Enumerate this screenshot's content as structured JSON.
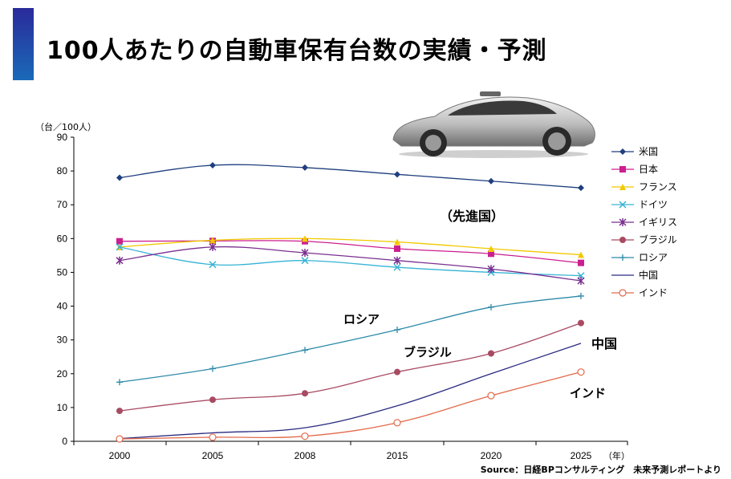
{
  "title": "100人あたりの自動車保有台数の実績・予測",
  "source": "Source：日経BPコンサルティング　未来予測レポートより",
  "chart_data": {
    "type": "line",
    "ylabel": "（台／100人）",
    "xlabel": "（年）",
    "categories": [
      "2000",
      "2005",
      "2008",
      "2015",
      "2020",
      "2025"
    ],
    "ylim": [
      0,
      90
    ],
    "yticks": [
      0,
      10,
      20,
      30,
      40,
      50,
      60,
      70,
      80,
      90
    ],
    "grid": false,
    "legend_position": "right",
    "series": [
      {
        "name": "米国",
        "color": "#1f3f7f",
        "marker": "diamond",
        "values": [
          78,
          81.7,
          81,
          79,
          77,
          75
        ]
      },
      {
        "name": "日本",
        "color": "#cc1f8f",
        "marker": "square",
        "values": [
          59.2,
          59.3,
          59.2,
          57,
          55.5,
          52.8
        ]
      },
      {
        "name": "フランス",
        "color": "#f2c800",
        "marker": "triangle",
        "values": [
          57.5,
          59.5,
          60,
          59,
          57,
          55.2
        ]
      },
      {
        "name": "ドイツ",
        "color": "#36b3d6",
        "marker": "x",
        "values": [
          57.5,
          52.3,
          53.5,
          51.5,
          50,
          49
        ]
      },
      {
        "name": "イギリス",
        "color": "#7a2f8f",
        "marker": "star",
        "values": [
          53.5,
          57.5,
          55.8,
          53.5,
          51,
          47.5
        ]
      },
      {
        "name": "ブラジル",
        "color": "#a84a62",
        "marker": "circle",
        "values": [
          9,
          12.3,
          14.2,
          20.5,
          26,
          35
        ]
      },
      {
        "name": "ロシア",
        "color": "#2c8aa8",
        "marker": "plus",
        "values": [
          17.5,
          21.5,
          27,
          33,
          39.7,
          43
        ]
      },
      {
        "name": "中国",
        "color": "#2a2a80",
        "marker": "none",
        "values": [
          0.8,
          2.5,
          4,
          10.5,
          20,
          29
        ]
      },
      {
        "name": "インド",
        "color": "#e26a4a",
        "marker": "open-circle",
        "values": [
          0.7,
          1.2,
          1.5,
          5.5,
          13.5,
          20.5
        ]
      }
    ],
    "annotations": [
      {
        "text": "（先進国）",
        "x": "2015",
        "y": 66
      },
      {
        "text": "ロシア",
        "x": "2008",
        "y": 36
      },
      {
        "text": "ブラジル",
        "x": "2015",
        "y": 26
      },
      {
        "text": "中国",
        "x": "2025",
        "y": 29
      },
      {
        "text": "インド",
        "x": "2025",
        "y": 14
      }
    ]
  }
}
